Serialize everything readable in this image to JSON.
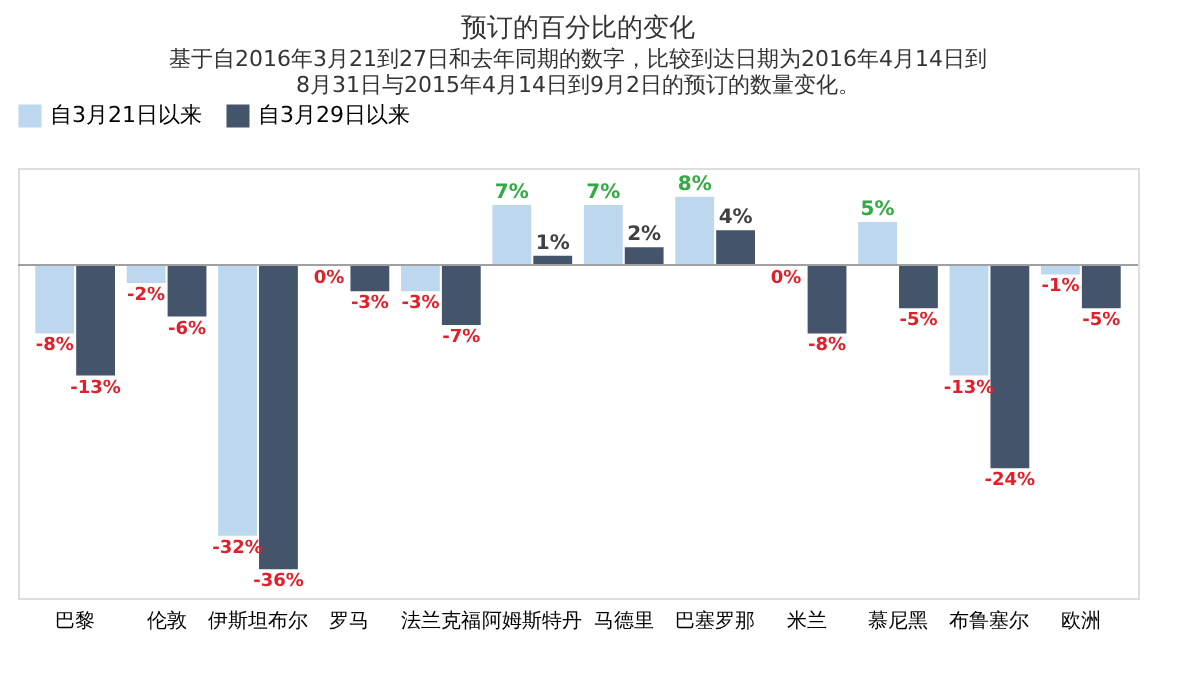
{
  "chart_data": {
    "type": "bar",
    "title": "预订的百分比的变化",
    "subtitle": [
      "基于自2016年3月21到27日和去年同期的数字，比较到达日期为2016年4月14日到",
      "8月31日与2015年4月14日到9月2日的预订的数量变化。"
    ],
    "categories": [
      "巴黎",
      "伦敦",
      "伊斯坦布尔",
      "罗马",
      "法兰克福",
      "阿姆斯特丹",
      "马德里",
      "巴塞罗那",
      "米兰",
      "慕尼黑",
      "布鲁塞尔",
      "欧洲"
    ],
    "series": [
      {
        "name": "自3月21日以来",
        "color": "#bdd7ee",
        "values": [
          -8,
          -2,
          -32,
          0,
          -3,
          7,
          7,
          8,
          0,
          5,
          -13,
          -1
        ],
        "value_labels": [
          "-8%",
          "-2%",
          "-32%",
          "0%",
          "-3%",
          "7%",
          "7%",
          "8%",
          "0%",
          "5%",
          "-13%",
          "-1%"
        ]
      },
      {
        "name": "自3月29日以来",
        "color": "#44546a",
        "values": [
          -13,
          -6,
          -36,
          -3,
          -7,
          1,
          2,
          4,
          -8,
          -5,
          -24,
          -5
        ],
        "value_labels": [
          "-13%",
          "-6%",
          "-36%",
          "-3%",
          "-7%",
          "1%",
          "2%",
          "4%",
          "-8%",
          "-5%",
          "-24%",
          "-5%"
        ]
      }
    ],
    "legend": "top",
    "grid": false
  }
}
